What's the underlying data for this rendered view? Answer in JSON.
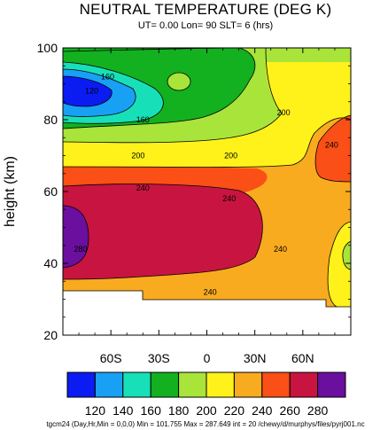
{
  "chart_data": {
    "type": "contour",
    "title": "NEUTRAL TEMPERATURE (DEG K)",
    "subtitle": "UT=  0.00 Lon= 90 SLT= 6 (hrs)",
    "xlabel": "",
    "ylabel": "height (km)",
    "xlim": [
      -90,
      90
    ],
    "ylim": [
      20,
      100
    ],
    "x_ticks": [
      -60,
      -30,
      0,
      30,
      60
    ],
    "x_tick_labels": [
      "60S",
      "30S",
      "0",
      "30N",
      "60N"
    ],
    "y_ticks": [
      20,
      40,
      60,
      80,
      100
    ],
    "y_tick_labels": [
      "20",
      "40",
      "60",
      "80",
      "100"
    ],
    "contour_levels": [
      120,
      140,
      160,
      180,
      200,
      220,
      240,
      260,
      280
    ],
    "colorbar_labels": [
      "120",
      "140",
      "160",
      "180",
      "200",
      "220",
      "240",
      "260",
      "280"
    ],
    "colorbar_colors": [
      "#0a1cf2",
      "#18a0f5",
      "#17e0b8",
      "#13b01f",
      "#a8e43a",
      "#fff21a",
      "#f8ab1f",
      "#fa4f16",
      "#c81440",
      "#6a0f9e"
    ],
    "contour_labels": [
      {
        "text": "160",
        "lon": -62,
        "alt": 92
      },
      {
        "text": "120",
        "lon": -72,
        "alt": 88
      },
      {
        "text": "160",
        "lon": -40,
        "alt": 80
      },
      {
        "text": "200",
        "lon": -43,
        "alt": 70
      },
      {
        "text": "200",
        "lon": 15,
        "alt": 70
      },
      {
        "text": "200",
        "lon": 48,
        "alt": 82
      },
      {
        "text": "240",
        "lon": -40,
        "alt": 61
      },
      {
        "text": "240",
        "lon": 14,
        "alt": 58
      },
      {
        "text": "240",
        "lon": 78,
        "alt": 73
      },
      {
        "text": "280",
        "lon": -79,
        "alt": 44
      },
      {
        "text": "240",
        "lon": 46,
        "alt": 44
      },
      {
        "text": "240",
        "lon": 2,
        "alt": 32
      }
    ],
    "footer": "tgcm24  (Day,Hr,Min = 0,0,0) Min = 101.755  Max  = 287.649  int = 20 /chewy/d/murphys/files/pyrj001.nc"
  }
}
